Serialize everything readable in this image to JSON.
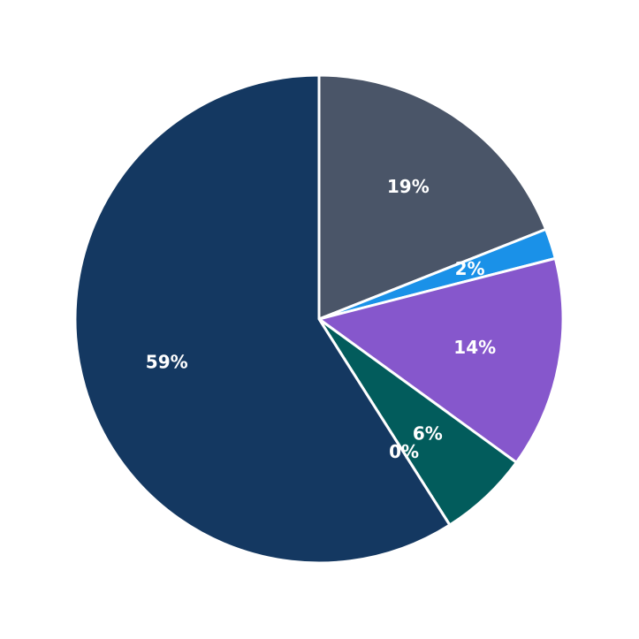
{
  "chart_data": {
    "type": "pie",
    "categories": [
      null,
      null,
      null,
      null,
      null,
      null
    ],
    "values": [
      19,
      2,
      14,
      6,
      0,
      59
    ],
    "value_labels": [
      "19%",
      "2%",
      "14%",
      "6%",
      "0%",
      "59%"
    ],
    "colors": [
      "#4a5568",
      "#1a91e8",
      "#8657cc",
      "#025c5c",
      "#1a66cc",
      "#143861"
    ]
  }
}
